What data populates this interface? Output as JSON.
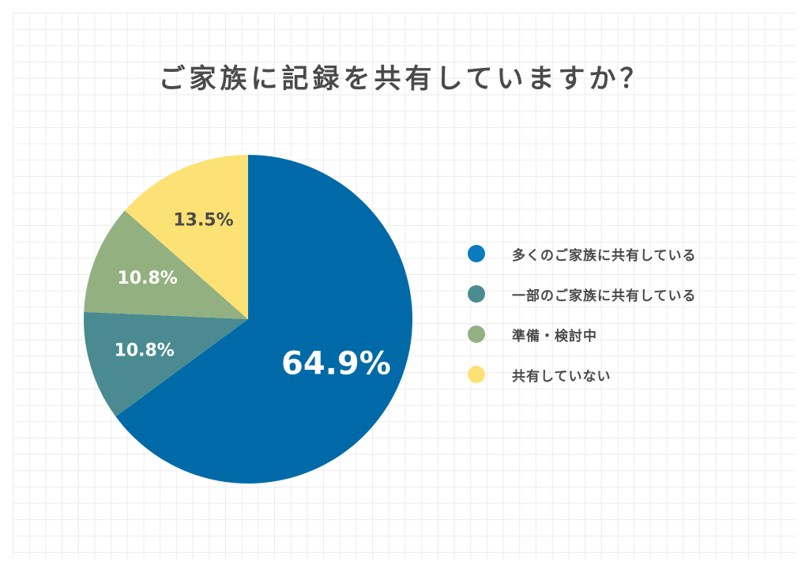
{
  "chart_data": {
    "type": "pie",
    "title": "ご家族に記録を共有していますか？",
    "categories": [
      "多くのご家族に共有している",
      "一部のご家族に共有している",
      "準備・検討中",
      "共有していない"
    ],
    "values": [
      64.9,
      10.8,
      10.8,
      13.5
    ],
    "labels": [
      "64.9%",
      "10.8%",
      "10.8%",
      "13.5%"
    ],
    "colors": [
      "#006aa8",
      "#4a8b91",
      "#93b081",
      "#fce274"
    ],
    "label_colors": [
      "#ffffff",
      "#ffffff",
      "#ffffff",
      "#4a4a4a"
    ],
    "legend_colors": [
      "#0a7bbd",
      "#4a8b91",
      "#93b081",
      "#fce274"
    ],
    "legend_position": "right"
  }
}
